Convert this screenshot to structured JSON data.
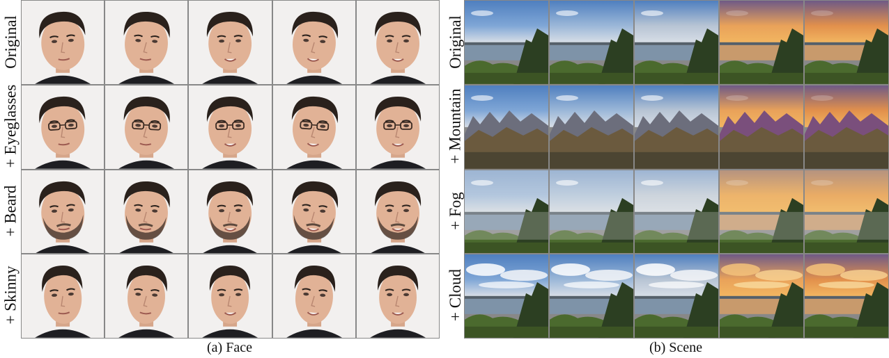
{
  "figure": {
    "face": {
      "caption": "(a) Face",
      "rows": [
        {
          "label": "Original",
          "attribute": "original"
        },
        {
          "label": "+ Eyeglasses",
          "attribute": "eyeglasses"
        },
        {
          "label": "+ Beard",
          "attribute": "beard"
        },
        {
          "label": "+ Skinny",
          "attribute": "skinny"
        }
      ],
      "columns": 5
    },
    "scene": {
      "caption": "(b) Scene",
      "rows": [
        {
          "label": "Original",
          "attribute": "original"
        },
        {
          "label": "+ Mountain",
          "attribute": "mountain"
        },
        {
          "label": "+ Fog",
          "attribute": "fog"
        },
        {
          "label": "+ Cloud",
          "attribute": "cloud"
        }
      ],
      "columns": 5,
      "sky_colors": [
        "#7fa6d6",
        "#9bb7d8",
        "#b7c4d4",
        "#e9a25a",
        "#e2904c"
      ]
    }
  }
}
